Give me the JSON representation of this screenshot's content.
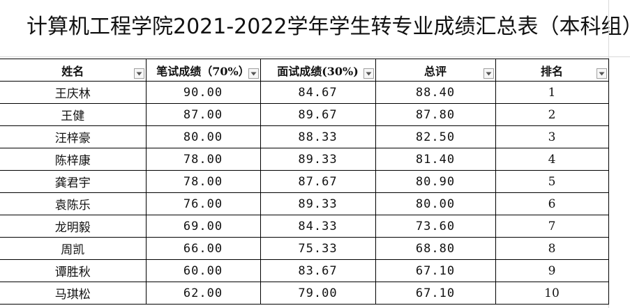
{
  "sheet": {
    "title": "计算机工程学院2021-2022学年学生转专业成绩汇总表（本科组）"
  },
  "table": {
    "headers": [
      {
        "label": "姓名",
        "filter_icon": "dropdown-arrow-icon"
      },
      {
        "label": "笔试成绩（70%）",
        "filter_icon": "dropdown-arrow-icon"
      },
      {
        "label": "面试成绩(30%)",
        "filter_icon": "dropdown-arrow-icon"
      },
      {
        "label": "总评",
        "filter_icon": "dropdown-arrow-icon"
      },
      {
        "label": "排名",
        "filter_icon": "dropdown-arrow-icon"
      }
    ],
    "rows": [
      {
        "name": "王庆林",
        "written": "90.00",
        "interview": "84.67",
        "total": "88.40",
        "rank": "1"
      },
      {
        "name": "王健",
        "written": "87.00",
        "interview": "89.67",
        "total": "87.80",
        "rank": "2"
      },
      {
        "name": "汪梓豪",
        "written": "80.00",
        "interview": "88.33",
        "total": "82.50",
        "rank": "3"
      },
      {
        "name": "陈梓康",
        "written": "78.00",
        "interview": "89.33",
        "total": "81.40",
        "rank": "4"
      },
      {
        "name": "龚君宇",
        "written": "78.00",
        "interview": "87.67",
        "total": "80.90",
        "rank": "5"
      },
      {
        "name": "袁陈乐",
        "written": "76.00",
        "interview": "89.33",
        "total": "80.00",
        "rank": "6"
      },
      {
        "name": "龙明毅",
        "written": "69.00",
        "interview": "84.33",
        "total": "73.60",
        "rank": "7"
      },
      {
        "name": "周凯",
        "written": "66.00",
        "interview": "75.33",
        "total": "68.80",
        "rank": "8"
      },
      {
        "name": "谭胜秋",
        "written": "60.00",
        "interview": "83.67",
        "total": "67.10",
        "rank": "9"
      },
      {
        "name": "马琪松",
        "written": "62.00",
        "interview": "79.00",
        "total": "67.10",
        "rank": "10"
      }
    ]
  }
}
